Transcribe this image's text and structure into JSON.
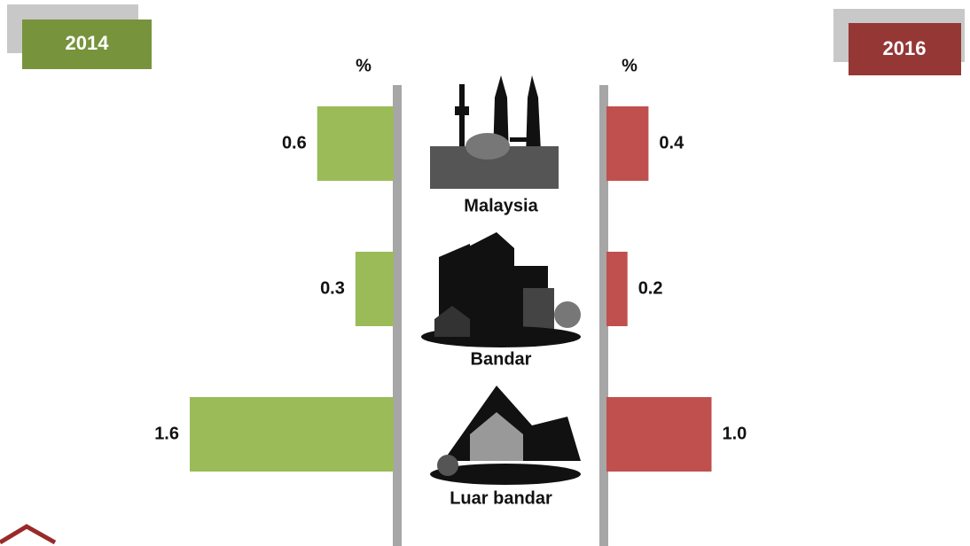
{
  "chart_data": {
    "type": "butterfly",
    "categories": [
      "Malaysia",
      "Bandar",
      "Luar bandar"
    ],
    "xlim": [
      0,
      2
    ],
    "series": [
      {
        "name": "2014",
        "color": "#9bbb59",
        "unit": "%",
        "values": [
          0.6,
          0.3,
          1.6
        ],
        "value_labels": [
          "0.6",
          "0.3",
          "1.6"
        ]
      },
      {
        "name": "2016",
        "color": "#c0504d",
        "unit": "%",
        "values": [
          0.4,
          0.2,
          1.0
        ],
        "value_labels": [
          "0.4",
          "0.2",
          "1.0"
        ]
      }
    ]
  }
}
